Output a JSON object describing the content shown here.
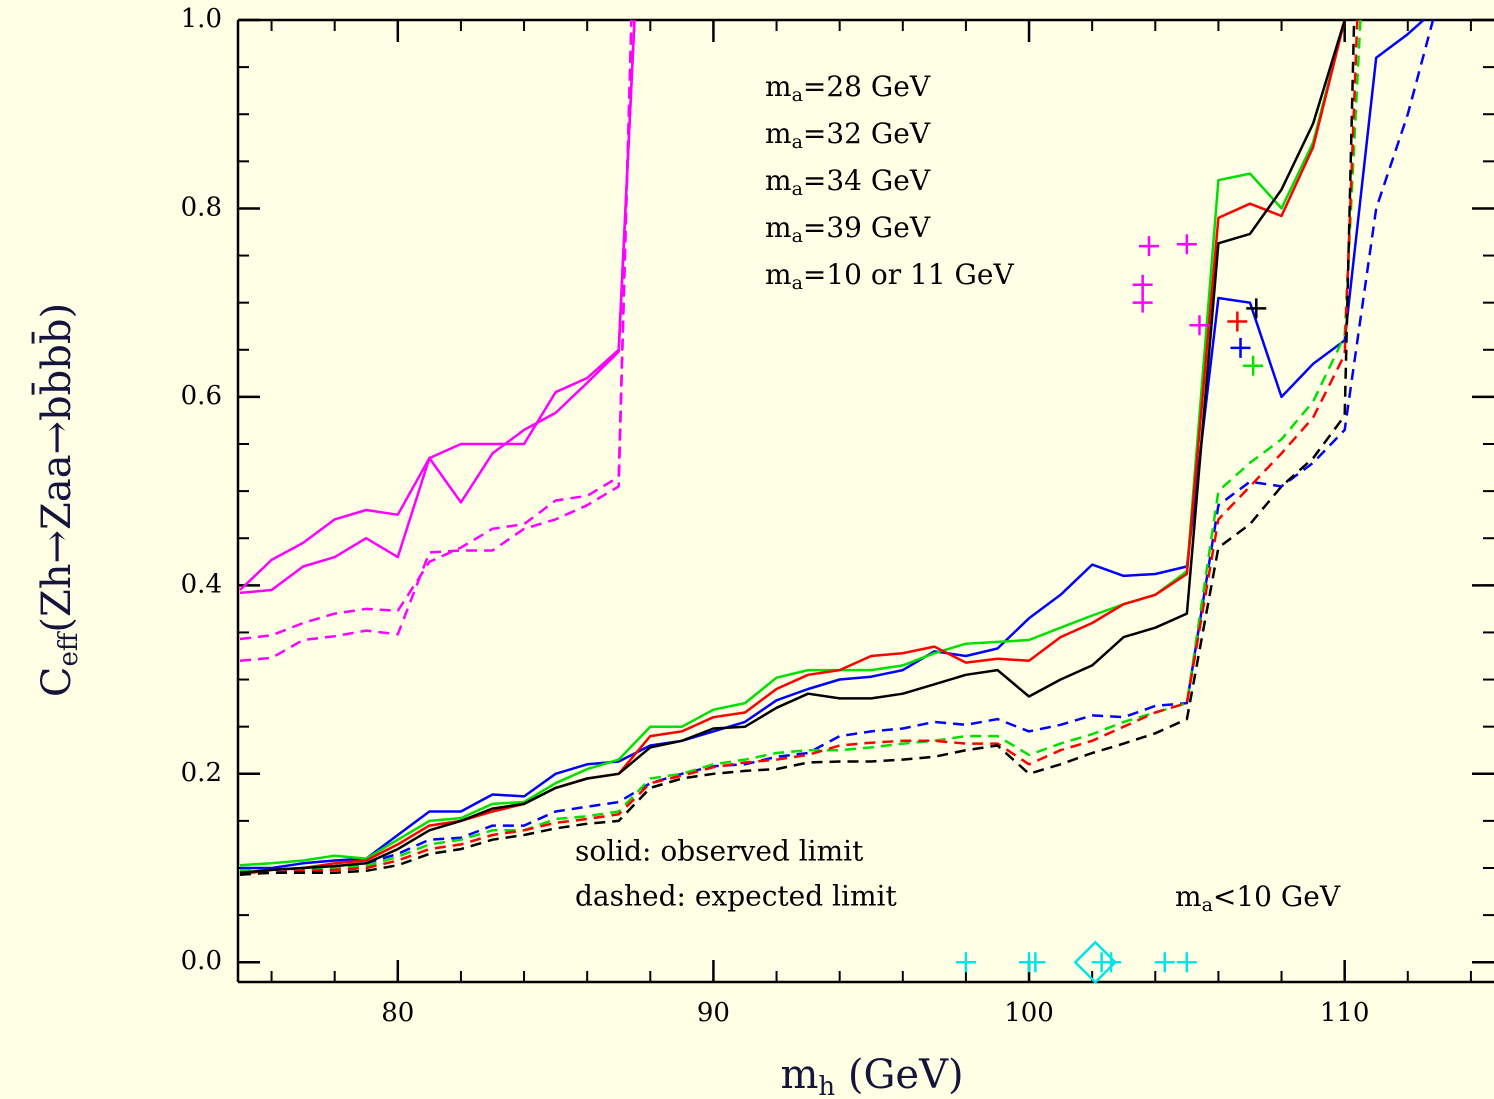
{
  "chart_data": {
    "type": "line",
    "x_label": {
      "main": "m",
      "sub": "h",
      "tail": " (GeV)"
    },
    "y_label": {
      "main": "C",
      "sub": "eff",
      "tail": "(Zh→Zaa→bb̄bb̄)"
    },
    "xlim": [
      75,
      114.7
    ],
    "ylim": [
      -0.021,
      1.0
    ],
    "xticks": [
      80,
      90,
      100,
      110
    ],
    "yticks": [
      {
        "value": 0,
        "label": "0.0"
      },
      {
        "value": 0.2,
        "label": "0.2"
      },
      {
        "value": 0.4,
        "label": "0.4"
      },
      {
        "value": 0.6,
        "label": "0.6"
      },
      {
        "value": 0.8,
        "label": "0.8"
      },
      {
        "value": 1.0,
        "label": "1.0"
      }
    ],
    "xminor": 2,
    "yminor": 0.05,
    "series": [
      {
        "name": "ma=28 GeV",
        "color": "#0000ff",
        "lines": [
          {
            "style": "solid",
            "x": [
              75,
              76,
              77,
              78,
              79,
              80,
              81,
              82,
              83,
              84,
              85,
              86,
              87,
              88,
              89,
              90,
              91,
              92,
              93,
              94,
              95,
              96,
              97,
              98,
              99,
              100,
              101,
              102,
              103,
              104,
              105,
              106,
              107,
              108,
              109,
              110,
              111,
              112,
              112.5
            ],
            "values": [
              0.1,
              0.1,
              0.105,
              0.108,
              0.11,
              0.135,
              0.16,
              0.16,
              0.178,
              0.176,
              0.2,
              0.21,
              0.213,
              0.23,
              0.235,
              0.245,
              0.255,
              0.278,
              0.29,
              0.3,
              0.303,
              0.31,
              0.33,
              0.325,
              0.333,
              0.365,
              0.39,
              0.422,
              0.41,
              0.412,
              0.42,
              0.705,
              0.7,
              0.6,
              0.635,
              0.66,
              0.96,
              0.985,
              1.0
            ]
          },
          {
            "style": "dashed",
            "x": [
              75,
              76,
              77,
              78,
              79,
              80,
              81,
              82,
              83,
              84,
              85,
              86,
              87,
              88,
              89,
              90,
              91,
              92,
              93,
              94,
              95,
              96,
              97,
              98,
              99,
              100,
              101,
              102,
              103,
              104,
              105,
              106,
              107,
              108,
              109,
              110,
              111,
              112,
              112.8
            ],
            "values": [
              0.095,
              0.098,
              0.1,
              0.102,
              0.105,
              0.115,
              0.13,
              0.132,
              0.145,
              0.145,
              0.16,
              0.165,
              0.17,
              0.19,
              0.2,
              0.208,
              0.21,
              0.218,
              0.222,
              0.24,
              0.245,
              0.248,
              0.255,
              0.252,
              0.258,
              0.245,
              0.252,
              0.262,
              0.26,
              0.272,
              0.275,
              0.485,
              0.51,
              0.505,
              0.53,
              0.565,
              0.8,
              0.9,
              1.0
            ]
          }
        ]
      },
      {
        "name": "ma=32 GeV",
        "color": "#00e000",
        "lines": [
          {
            "style": "solid",
            "x": [
              75,
              76,
              77,
              78,
              79,
              80,
              81,
              82,
              83,
              84,
              85,
              86,
              87,
              88,
              89,
              90,
              91,
              92,
              93,
              94,
              95,
              96,
              97,
              98,
              99,
              100,
              101,
              102,
              103,
              104,
              105,
              106,
              107,
              108,
              109,
              110
            ],
            "values": [
              0.103,
              0.105,
              0.108,
              0.113,
              0.11,
              0.13,
              0.15,
              0.153,
              0.168,
              0.17,
              0.19,
              0.205,
              0.215,
              0.25,
              0.25,
              0.268,
              0.275,
              0.302,
              0.31,
              0.31,
              0.31,
              0.315,
              0.328,
              0.338,
              0.34,
              0.342,
              0.355,
              0.368,
              0.38,
              0.39,
              0.415,
              0.83,
              0.837,
              0.8,
              0.87,
              1.0
            ]
          },
          {
            "style": "dashed",
            "x": [
              75,
              76,
              77,
              78,
              79,
              80,
              81,
              82,
              83,
              84,
              85,
              86,
              87,
              88,
              89,
              90,
              91,
              92,
              93,
              94,
              95,
              96,
              97,
              98,
              99,
              100,
              101,
              102,
              103,
              104,
              105,
              106,
              107,
              108,
              109,
              110,
              110.5
            ],
            "values": [
              0.097,
              0.098,
              0.1,
              0.1,
              0.102,
              0.112,
              0.125,
              0.13,
              0.14,
              0.14,
              0.152,
              0.155,
              0.16,
              0.195,
              0.2,
              0.21,
              0.215,
              0.222,
              0.225,
              0.225,
              0.228,
              0.232,
              0.235,
              0.24,
              0.24,
              0.22,
              0.232,
              0.242,
              0.255,
              0.265,
              0.275,
              0.5,
              0.53,
              0.555,
              0.595,
              0.665,
              1.0
            ]
          }
        ]
      },
      {
        "name": "ma=34 GeV",
        "color": "#ff0000",
        "lines": [
          {
            "style": "solid",
            "x": [
              75,
              76,
              77,
              78,
              79,
              80,
              81,
              82,
              83,
              84,
              85,
              86,
              87,
              88,
              89,
              90,
              91,
              92,
              93,
              94,
              95,
              96,
              97,
              98,
              99,
              100,
              101,
              102,
              103,
              104,
              105,
              106,
              107,
              108,
              109,
              110
            ],
            "values": [
              0.093,
              0.098,
              0.1,
              0.105,
              0.108,
              0.125,
              0.145,
              0.15,
              0.16,
              0.168,
              0.185,
              0.195,
              0.2,
              0.24,
              0.245,
              0.26,
              0.265,
              0.29,
              0.305,
              0.31,
              0.325,
              0.328,
              0.335,
              0.318,
              0.322,
              0.32,
              0.345,
              0.36,
              0.38,
              0.39,
              0.412,
              0.79,
              0.805,
              0.792,
              0.865,
              1.0
            ]
          },
          {
            "style": "dashed",
            "x": [
              75,
              76,
              77,
              78,
              79,
              80,
              81,
              82,
              83,
              84,
              85,
              86,
              87,
              88,
              89,
              90,
              91,
              92,
              93,
              94,
              95,
              96,
              97,
              98,
              99,
              100,
              101,
              102,
              103,
              104,
              105,
              106,
              107,
              108,
              109,
              110,
              110.4
            ],
            "values": [
              0.093,
              0.095,
              0.097,
              0.098,
              0.1,
              0.108,
              0.12,
              0.125,
              0.135,
              0.14,
              0.148,
              0.152,
              0.157,
              0.19,
              0.198,
              0.207,
              0.212,
              0.215,
              0.22,
              0.23,
              0.233,
              0.235,
              0.235,
              0.232,
              0.232,
              0.21,
              0.225,
              0.235,
              0.25,
              0.265,
              0.275,
              0.47,
              0.505,
              0.54,
              0.578,
              0.645,
              1.0
            ]
          }
        ]
      },
      {
        "name": "ma=39 GeV",
        "color": "#000000",
        "lines": [
          {
            "style": "solid",
            "x": [
              75,
              76,
              77,
              78,
              79,
              80,
              81,
              82,
              83,
              84,
              85,
              86,
              87,
              88,
              89,
              90,
              91,
              92,
              93,
              94,
              95,
              96,
              97,
              98,
              99,
              100,
              101,
              102,
              103,
              104,
              105,
              106,
              107,
              108,
              109,
              110
            ],
            "values": [
              0.095,
              0.098,
              0.1,
              0.102,
              0.105,
              0.12,
              0.14,
              0.15,
              0.163,
              0.168,
              0.185,
              0.195,
              0.2,
              0.228,
              0.235,
              0.248,
              0.25,
              0.27,
              0.285,
              0.28,
              0.28,
              0.285,
              0.295,
              0.305,
              0.31,
              0.282,
              0.3,
              0.315,
              0.345,
              0.355,
              0.37,
              0.763,
              0.773,
              0.82,
              0.89,
              1.0
            ]
          },
          {
            "style": "dashed",
            "x": [
              75,
              76,
              77,
              78,
              79,
              80,
              81,
              82,
              83,
              84,
              85,
              86,
              87,
              88,
              89,
              90,
              91,
              92,
              93,
              94,
              95,
              96,
              97,
              98,
              99,
              100,
              101,
              102,
              103,
              104,
              105,
              106,
              107,
              108,
              109,
              110,
              110.3
            ],
            "values": [
              0.093,
              0.095,
              0.095,
              0.095,
              0.097,
              0.103,
              0.115,
              0.12,
              0.13,
              0.135,
              0.142,
              0.147,
              0.15,
              0.185,
              0.195,
              0.2,
              0.203,
              0.205,
              0.212,
              0.213,
              0.213,
              0.215,
              0.218,
              0.225,
              0.23,
              0.2,
              0.21,
              0.222,
              0.232,
              0.243,
              0.258,
              0.44,
              0.465,
              0.505,
              0.535,
              0.58,
              1.0
            ]
          }
        ]
      },
      {
        "name": "ma=10 or 11 GeV",
        "color": "#ff00ff",
        "lines": [
          {
            "style": "solid",
            "x": [
              75,
              76,
              77,
              78,
              79,
              80,
              81,
              82,
              83,
              84,
              85,
              86,
              87,
              87.5
            ],
            "values": [
              0.395,
              0.427,
              0.445,
              0.47,
              0.48,
              0.475,
              0.535,
              0.488,
              0.54,
              0.565,
              0.583,
              0.615,
              0.648,
              1.0
            ]
          },
          {
            "style": "solid",
            "x": [
              75,
              76,
              77,
              78,
              79,
              80,
              81,
              82,
              83,
              84,
              85,
              86,
              87,
              87.5
            ],
            "values": [
              0.392,
              0.395,
              0.42,
              0.43,
              0.45,
              0.43,
              0.535,
              0.55,
              0.55,
              0.55,
              0.605,
              0.62,
              0.65,
              1.0
            ]
          },
          {
            "style": "dashed",
            "x": [
              75,
              76,
              77,
              78,
              79,
              80,
              81,
              82,
              83,
              84,
              85,
              86,
              87,
              87.4
            ],
            "values": [
              0.343,
              0.347,
              0.36,
              0.37,
              0.375,
              0.373,
              0.425,
              0.44,
              0.46,
              0.465,
              0.49,
              0.495,
              0.515,
              1.0
            ]
          },
          {
            "style": "dashed",
            "x": [
              75,
              76,
              77,
              78,
              79,
              80,
              81,
              82,
              83,
              84,
              85,
              86,
              87,
              87.4
            ],
            "values": [
              0.32,
              0.323,
              0.342,
              0.346,
              0.352,
              0.348,
              0.435,
              0.437,
              0.437,
              0.46,
              0.47,
              0.485,
              0.505,
              1.0
            ]
          }
        ]
      }
    ],
    "markers": [
      {
        "color": "#ff00ff",
        "shape": "plus",
        "x": [
          103.6,
          103.6,
          103.8,
          105.0,
          105.4
        ],
        "values": [
          0.7,
          0.719,
          0.76,
          0.762,
          0.676
        ]
      },
      {
        "color": "#0000ff",
        "shape": "plus",
        "x": [
          106.7
        ],
        "values": [
          0.652
        ]
      },
      {
        "color": "#ff0000",
        "shape": "plus",
        "x": [
          106.6
        ],
        "values": [
          0.68
        ]
      },
      {
        "color": "#00e000",
        "shape": "plus",
        "x": [
          107.1
        ],
        "values": [
          0.633
        ]
      },
      {
        "color": "#000000",
        "shape": "plus",
        "x": [
          107.2
        ],
        "values": [
          0.694
        ]
      },
      {
        "name": "ma<10 GeV",
        "color": "#00e5e5",
        "shape": "plus",
        "x": [
          98.0,
          100.0,
          100.2,
          102.3,
          102.6,
          104.3,
          105.0
        ],
        "values": [
          0,
          0,
          0,
          0,
          0,
          0,
          0
        ]
      },
      {
        "color": "#00e5e5",
        "shape": "diamond",
        "x": [
          102.1
        ],
        "values": [
          0
        ]
      }
    ],
    "annotations": [
      "solid: observed limit",
      "dashed: expected limit"
    ]
  }
}
